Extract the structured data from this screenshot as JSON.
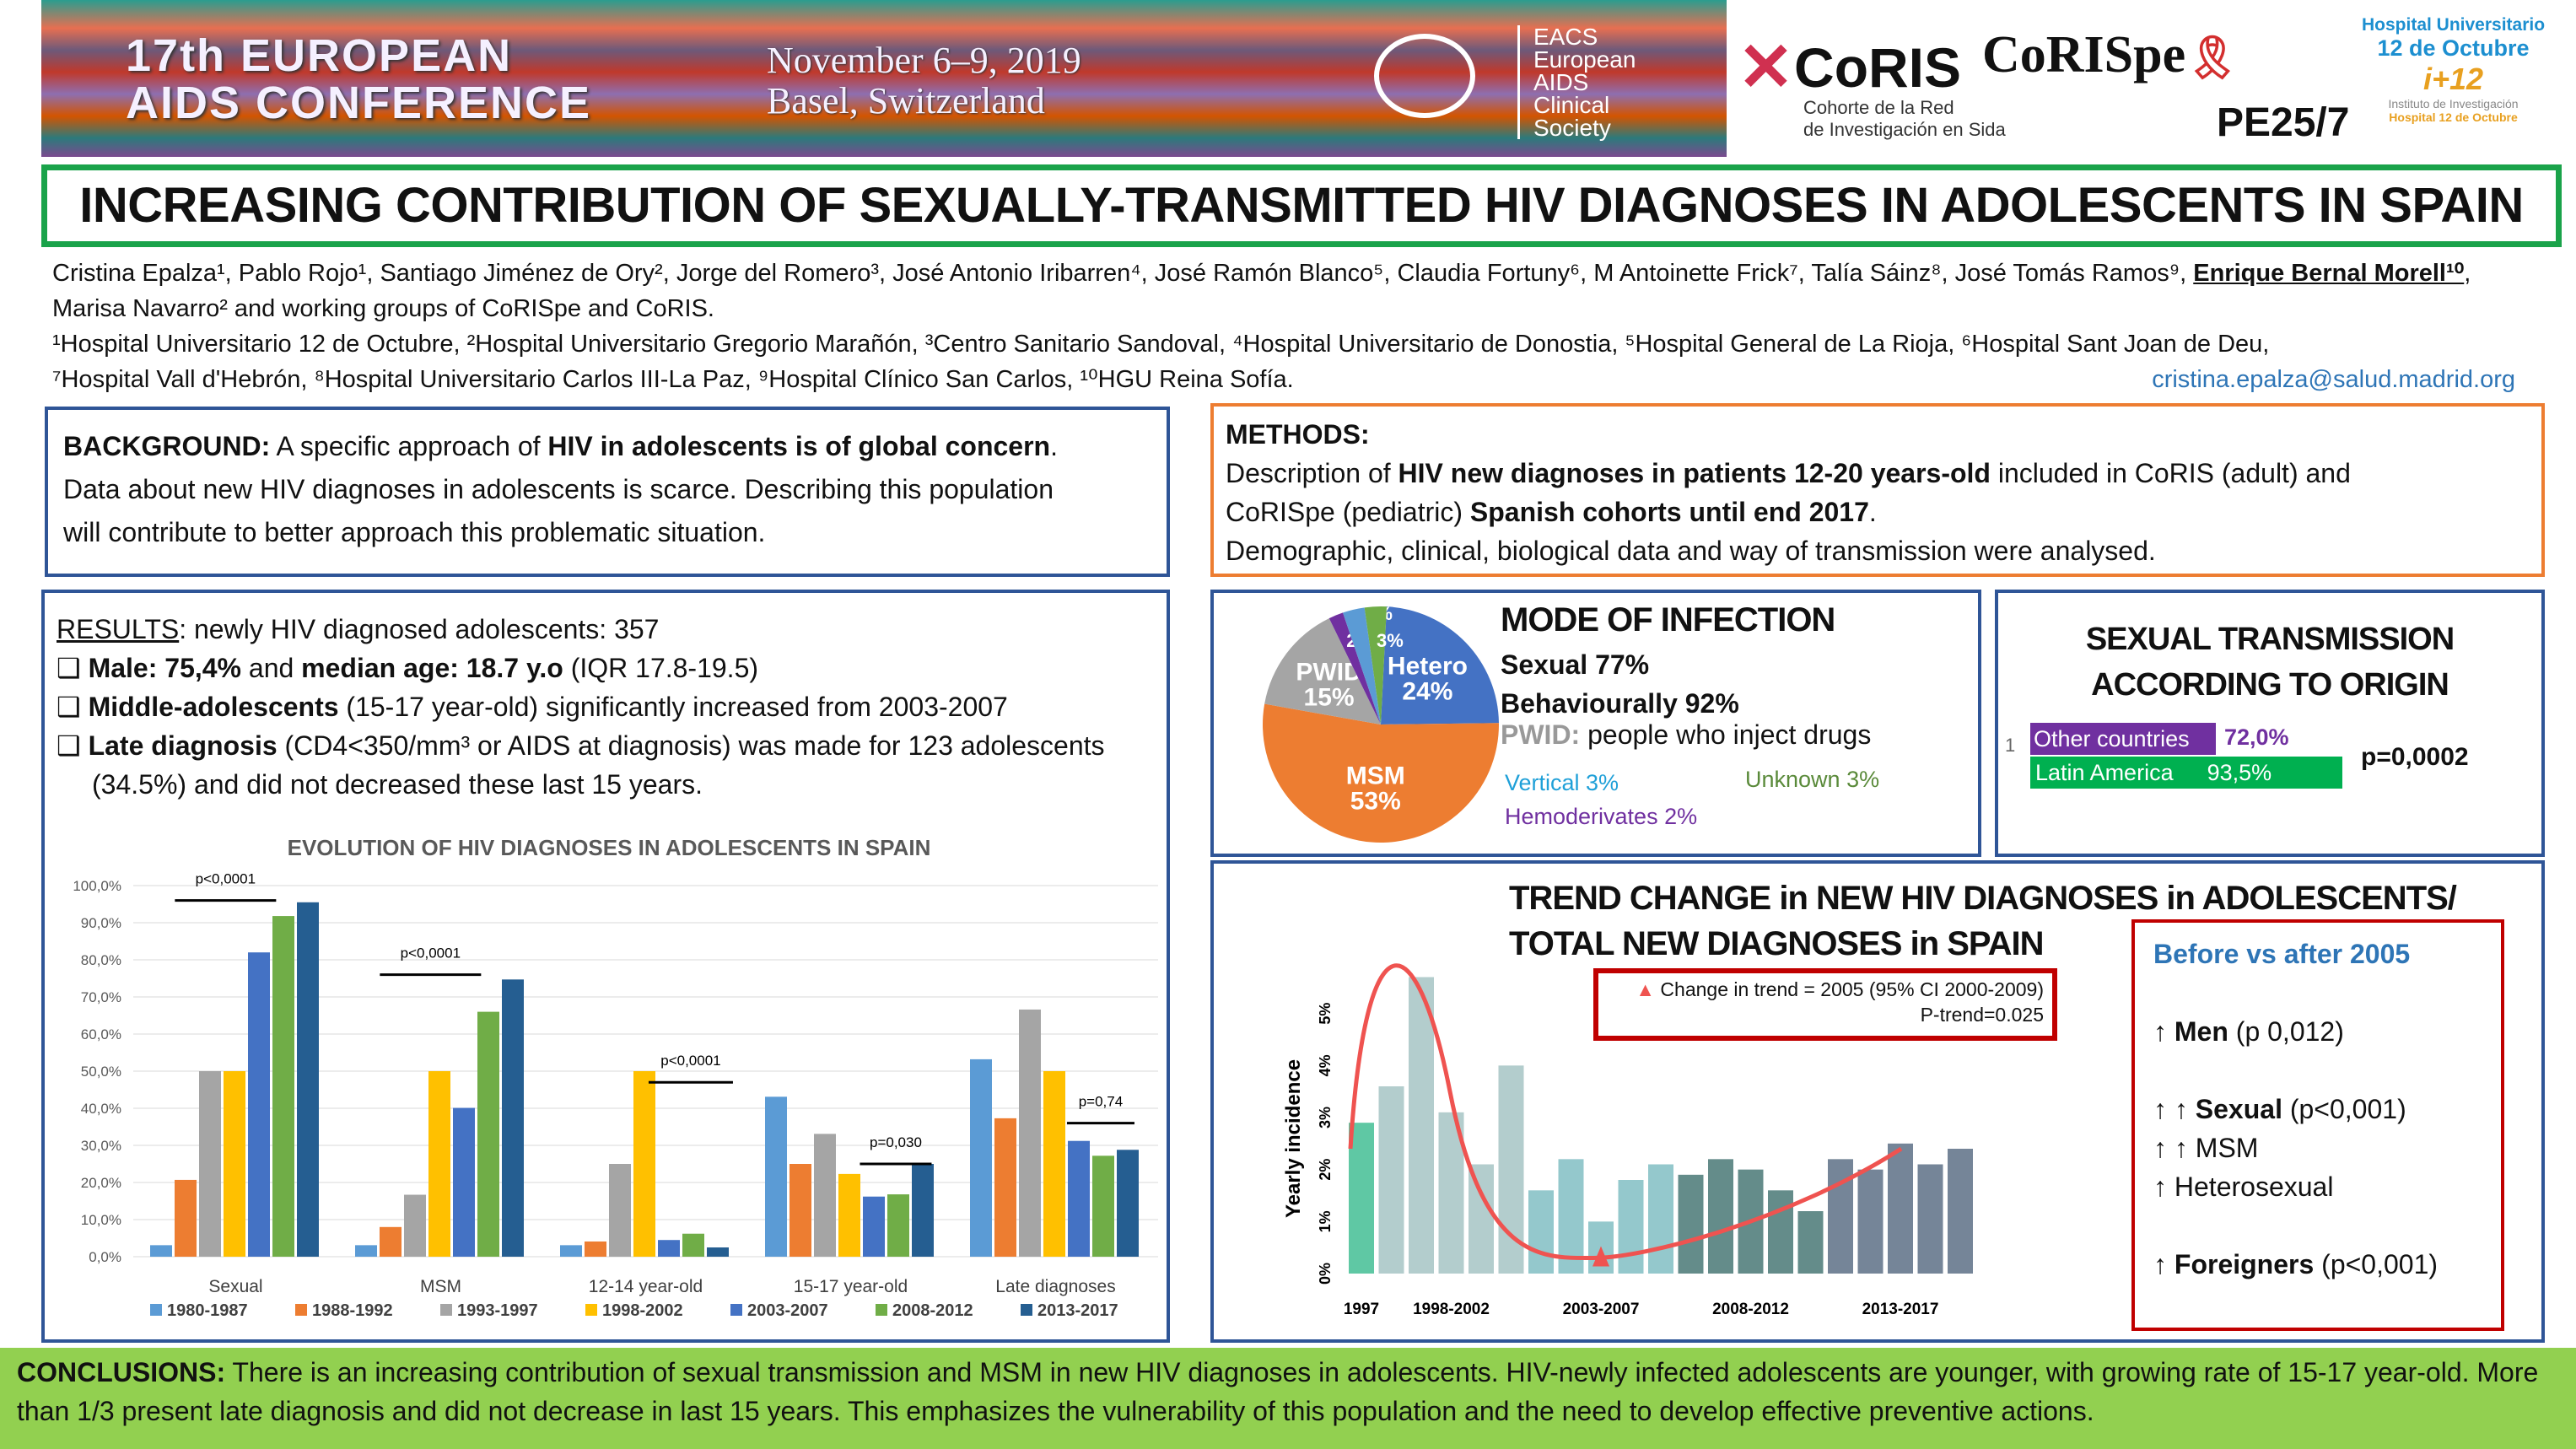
{
  "header": {
    "conference": [
      "17th EUROPEAN",
      "AIDS CONFERENCE"
    ],
    "dates": [
      "November 6–9, 2019",
      "Basel, Switzerland"
    ],
    "society": [
      "EACS",
      "European",
      "AIDS",
      "Clinical",
      "Society"
    ],
    "coris": {
      "name": "CoRIS",
      "sub": [
        "Cohorte de la Red",
        "de Investigación en Sida"
      ]
    },
    "corispe": "CoRISpe",
    "poster_id": "PE25/7",
    "hospital": [
      "Hospital Universitario",
      "12 de Octubre"
    ],
    "imas12": "i+12",
    "instituto": [
      "Instituto de Investigación",
      "Hospital 12 de Octubre"
    ]
  },
  "title": "INCREASING CONTRIBUTION OF SEXUALLY-TRANSMITTED HIV DIAGNOSES IN ADOLESCENTS IN SPAIN",
  "authors": {
    "line1": "Cristina Epalza¹, Pablo Rojo¹, Santiago Jiménez de Ory², Jorge del Romero³, José Antonio Iribarren⁴, José Ramón Blanco⁵, Claudia Fortuny⁶, M Antoinette Frick⁷, Talía Sáinz⁸, José Tomás Ramos⁹, ",
    "presenter": "Enrique Bernal Morell¹⁰",
    "line2": ", Marisa Navarro² and working groups of CoRISpe and CoRIS.",
    "affil1": "¹Hospital Universitario 12 de Octubre, ²Hospital Universitario Gregorio Marañón, ³Centro Sanitario Sandoval, ⁴Hospital Universitario de Donostia, ⁵Hospital General de La Rioja, ⁶Hospital Sant Joan de Deu,",
    "affil2": "⁷Hospital Vall d'Hebrón, ⁸Hospital Universitario Carlos III-La Paz, ⁹Hospital Clínico San Carlos, ¹⁰HGU Reina Sofía.",
    "email": "cristina.epalza@salud.madrid.org"
  },
  "background": {
    "label": "BACKGROUND:",
    "t1": " A specific approach of ",
    "b1": "HIV in adolescents is of global concern",
    "t2": ".",
    "l2": "Data about new HIV diagnoses in adolescents is scarce. Describing this population",
    "l3": "will contribute to better approach this problematic situation."
  },
  "methods": {
    "label": "METHODS:",
    "t1": "Description of ",
    "b1": "HIV new diagnoses in patients 12-20 years-old",
    "t2": " included in CoRIS (adult) and",
    "t3": "CoRISpe (pediatric) ",
    "b2": "Spanish cohorts until end 2017",
    "t4": ".",
    "l3": "Demographic, clinical, biological data and way of transmission were analysed."
  },
  "results": {
    "label": "RESULTS",
    "intro": ": newly HIV diagnosed adolescents: 357",
    "b1": [
      "Male: 75,4%",
      " and ",
      "median age: 18.7 y.o",
      " (IQR 17.8-19.5)"
    ],
    "b2": [
      "Middle-adolescents",
      " (15-17 year-old) significantly increased from 2003-2007"
    ],
    "b3": [
      "Late diagnosis",
      " (CD4<350/mm³ or AIDS at diagnosis) was made for 123 adolescents"
    ],
    "b3b": "(34.5%) and did not decreased these last 15 years."
  },
  "mode": {
    "title": "MODE OF INFECTION",
    "sexual": "Sexual 77%",
    "behav": "Behaviourally 92%",
    "pwid_label": "PWID:",
    "pwid_def": " people who inject drugs",
    "vertical": "Vertical 3%",
    "unknown": "Unknown 3%",
    "hemo": "Hemoderivates 2%",
    "slices": [
      {
        "label": "Hetero",
        "value": 24,
        "text": "24%",
        "color": "#4472c4"
      },
      {
        "label": "MSM",
        "value": 53,
        "text": "53%",
        "color": "#ed7d31"
      },
      {
        "label": "PWID",
        "value": 15,
        "text": "15%",
        "color": "#a5a5a5"
      },
      {
        "label": "",
        "value": 2,
        "text": "2%",
        "color": "#7030a0"
      },
      {
        "label": "",
        "value": 3,
        "text": "3%",
        "color": "#5b9bd5"
      },
      {
        "label": "",
        "value": 3,
        "text": "3%",
        "color": "#70ad47"
      }
    ]
  },
  "origin": {
    "title": [
      "SEXUAL TRANSMISSION",
      "ACCORDING TO ORIGIN"
    ],
    "axis_label": "1",
    "bars": [
      {
        "label": "Other countries",
        "value": 72.0,
        "text": "72,0%",
        "color": "#7030a0"
      },
      {
        "label": "Latin America",
        "value": 93.5,
        "text": "93,5%",
        "color": "#00b050"
      }
    ],
    "p": "p=0,0002"
  },
  "chart_data": [
    {
      "type": "bar",
      "title": "EVOLUTION OF HIV DIAGNOSES IN ADOLESCENTS IN SPAIN",
      "categories": [
        "Sexual",
        "MSM",
        "12-14 year-old",
        "15-17 year-old",
        "Late diagnoses"
      ],
      "ylim": [
        0,
        100
      ],
      "yticks": [
        "0,0%",
        "10,0%",
        "20,0%",
        "30,0%",
        "40,0%",
        "50,0%",
        "60,0%",
        "70,0%",
        "80,0%",
        "90,0%",
        "100,0%"
      ],
      "grid": true,
      "legend": "bottom",
      "series": [
        {
          "name": "1980-1987",
          "color": "#5b9bd5",
          "values": [
            3.1,
            3.1,
            3.1,
            43.1,
            53.2
          ]
        },
        {
          "name": "1988-1992",
          "color": "#ed7d31",
          "values": [
            20.7,
            8.0,
            4.1,
            25.0,
            37.3
          ]
        },
        {
          "name": "1993-1997",
          "color": "#a5a5a5",
          "values": [
            50.0,
            16.7,
            25.0,
            33.1,
            66.6
          ]
        },
        {
          "name": "1998-2002",
          "color": "#ffc000",
          "values": [
            50.0,
            50.0,
            50.0,
            22.3,
            50.0
          ]
        },
        {
          "name": "2003-2007",
          "color": "#4472c4",
          "values": [
            82.0,
            40.1,
            4.5,
            16.2,
            31.2
          ]
        },
        {
          "name": "2008-2012",
          "color": "#70ad47",
          "values": [
            91.8,
            66.0,
            6.2,
            16.8,
            27.2
          ]
        },
        {
          "name": "2013-2017",
          "color": "#255e91",
          "values": [
            95.5,
            74.7,
            2.5,
            25.0,
            28.8
          ]
        }
      ],
      "annotations": [
        "p<0,0001",
        "p<0,0001",
        "p<0,0001",
        "p=0,030",
        "p=0,74"
      ]
    },
    {
      "type": "bar",
      "title": [
        "TREND CHANGE in NEW HIV DIAGNOSES in ADOLESCENTS/",
        "TOTAL NEW DIAGNOSES in SPAIN"
      ],
      "ylabel": "Yearly incidence",
      "ylim": [
        0,
        6
      ],
      "yticks": [
        "0%",
        "1%",
        "2%",
        "3%",
        "4%",
        "5%"
      ],
      "xticks": [
        "1997",
        "1998-2002",
        "2003-2007",
        "2008-2012",
        "2013-2017"
      ],
      "x": [
        1997,
        1998,
        1999,
        2000,
        2001,
        2002,
        2003,
        2004,
        2005,
        2006,
        2007,
        2008,
        2009,
        2010,
        2011,
        2012,
        2013,
        2014,
        2015,
        2016,
        2017
      ],
      "values": [
        2.9,
        3.6,
        5.7,
        3.1,
        2.1,
        4.0,
        1.6,
        2.2,
        1.0,
        1.8,
        2.1,
        1.9,
        2.2,
        2.0,
        1.6,
        1.2,
        2.2,
        2.0,
        2.5,
        2.1,
        2.4
      ],
      "colors": {
        "1997": "#5fc8a4",
        "1998-2002": "#b3cdcd",
        "2003-2007": "#94c8cc",
        "2008-2012": "#648c8a",
        "2013-2017": "#758598"
      },
      "trend_color": "#ef5350",
      "legend": [
        "Change in trend = 2005 (95% CI 2000-2009)",
        "P-trend=0.025"
      ]
    }
  ],
  "summary": {
    "title": "Before vs after 2005",
    "items": [
      "↑ Men",
      " (p 0,012)",
      "↑ ↑ Sexual",
      " (p<0,001)",
      "↑ ↑ MSM",
      "↑ Heterosexual",
      "↑ Foreigners",
      " (p<0,001)"
    ]
  },
  "conclusions": {
    "label": "CONCLUSIONS:",
    "text": " There is an increasing contribution of sexual transmission and MSM in new HIV diagnoses in adolescents. HIV-newly infected adolescents are younger, with growing rate of 15-17 year-old. More than 1/3 present late diagnosis and did not decrease in last 15 years. This emphasizes the vulnerability of this population and the need to develop effective preventive actions."
  }
}
